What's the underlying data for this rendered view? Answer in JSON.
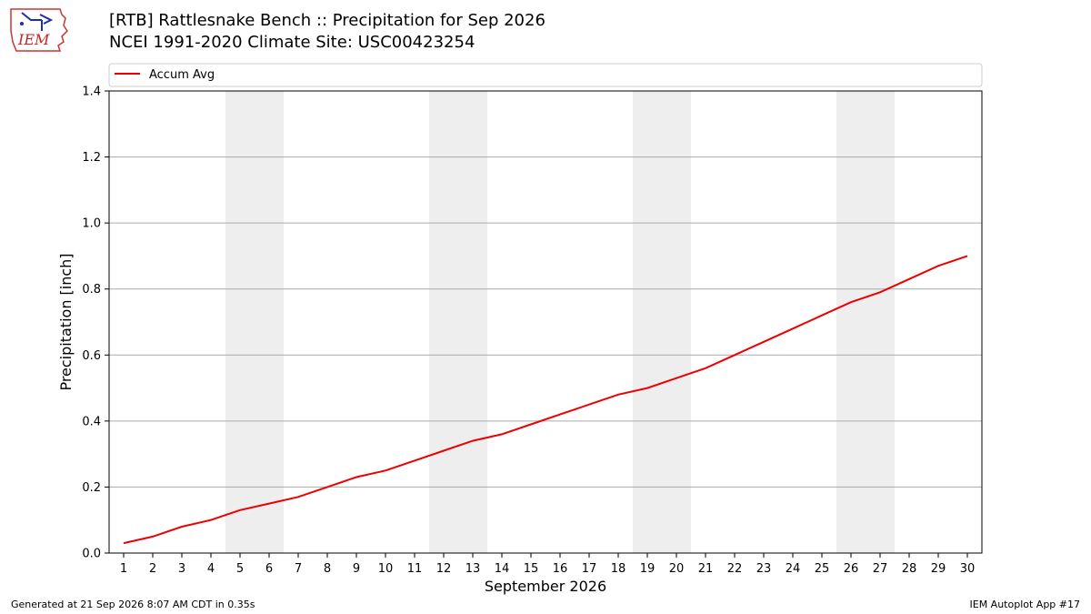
{
  "header": {
    "title": "[RTB] Rattlesnake Bench  :: Precipitation for Sep 2026",
    "subtitle": "NCEI 1991-2020 Climate Site: USC00423254",
    "logo_text": "IEM"
  },
  "footer": {
    "left": "Generated at 21 Sep 2026 8:07 AM CDT in 0.35s",
    "right": "IEM Autoplot App #17"
  },
  "colors": {
    "series": "#ee0000",
    "weekend_band": "#eeeeee",
    "grid": "#aaaaaa",
    "logo": "#cc2222"
  },
  "chart_data": {
    "type": "line",
    "xlabel": "September 2026",
    "ylabel": "Precipitation [inch]",
    "xlim": [
      1,
      30
    ],
    "ylim": [
      0,
      1.4
    ],
    "yticks": [
      "0.0",
      "0.2",
      "0.4",
      "0.6",
      "0.8",
      "1.0",
      "1.2",
      "1.4"
    ],
    "x": [
      1,
      2,
      3,
      4,
      5,
      6,
      7,
      8,
      9,
      10,
      11,
      12,
      13,
      14,
      15,
      16,
      17,
      18,
      19,
      20,
      21,
      22,
      23,
      24,
      25,
      26,
      27,
      28,
      29,
      30
    ],
    "series": [
      {
        "name": "Accum Avg",
        "values": [
          0.03,
          0.05,
          0.08,
          0.1,
          0.13,
          0.15,
          0.17,
          0.2,
          0.23,
          0.25,
          0.28,
          0.31,
          0.34,
          0.36,
          0.39,
          0.42,
          0.45,
          0.48,
          0.5,
          0.53,
          0.56,
          0.6,
          0.64,
          0.68,
          0.72,
          0.76,
          0.79,
          0.83,
          0.87,
          0.9
        ]
      }
    ],
    "weekend_bands": [
      [
        5,
        6
      ],
      [
        12,
        13
      ],
      [
        19,
        20
      ],
      [
        26,
        27
      ]
    ],
    "grid": "y",
    "legend_position": "top-left"
  }
}
